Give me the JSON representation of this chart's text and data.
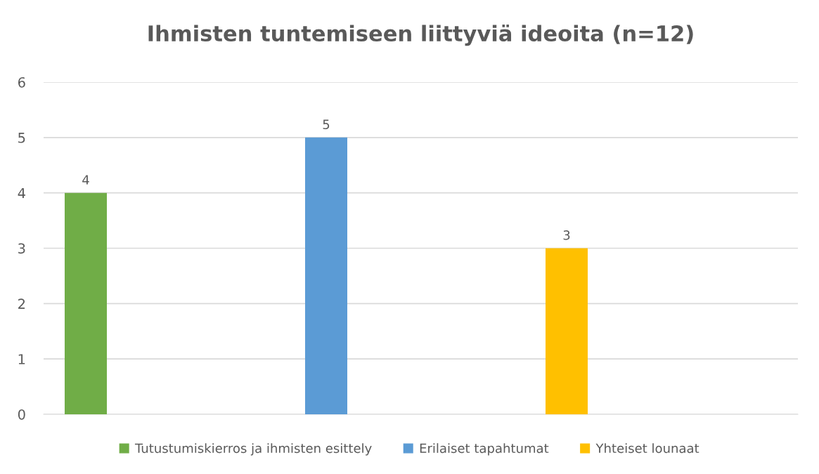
{
  "chart_data": {
    "type": "bar",
    "title": "Ihmisten tuntemiseen liittyviä ideoita (n=12)",
    "categories": [
      null
    ],
    "series": [
      {
        "name": "Tutustumiskierros ja ihmisten esittely",
        "color": "#70ad47",
        "values": [
          4
        ]
      },
      {
        "name": "Erilaiset tapahtumat",
        "color": "#5b9bd5",
        "values": [
          5
        ]
      },
      {
        "name": "Yhteiset lounaat",
        "color": "#ffc000",
        "values": [
          3
        ]
      }
    ],
    "ylim": [
      0,
      6
    ],
    "yticks": [
      0,
      1,
      2,
      3,
      4,
      5,
      6
    ],
    "grid": "y",
    "data_labels": true,
    "legend": "bottom"
  }
}
